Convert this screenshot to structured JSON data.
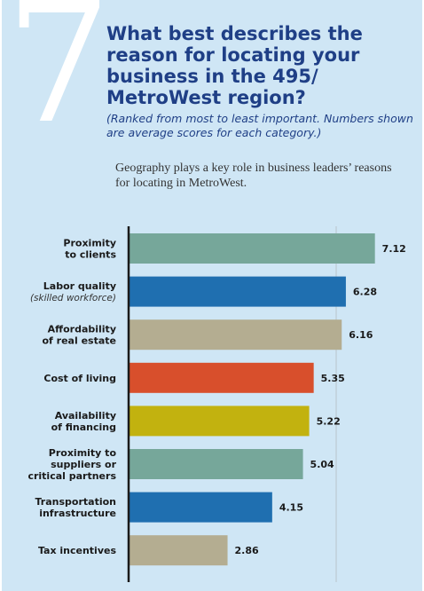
{
  "header": {
    "number": "7",
    "title": "What best describes the reason for locating your business in the 495/ MetroWest region?",
    "subtitle": "(Ranked from most to least important. Numbers shown are average scores for each category.)",
    "intro": "Geography plays a key role in business leaders’ reasons for locating in MetroWest."
  },
  "chart_data": {
    "type": "bar",
    "orientation": "horizontal",
    "xlim": [
      0,
      8
    ],
    "categories": [
      [
        "Proximity",
        "to clients"
      ],
      [
        "Labor quality"
      ],
      [
        "Affordability",
        "of real estate"
      ],
      [
        "Cost of living"
      ],
      [
        "Availability",
        "of financing"
      ],
      [
        "Proximity to",
        "suppliers or",
        "critical partners"
      ],
      [
        "Transportation",
        "infrastructure"
      ],
      [
        "Tax incentives"
      ]
    ],
    "category_notes": [
      "",
      "(skilled workforce)",
      "",
      "",
      "",
      "",
      "",
      ""
    ],
    "values": [
      7.12,
      6.28,
      6.16,
      5.35,
      5.22,
      5.04,
      4.15,
      2.86
    ],
    "value_labels": [
      "7.12",
      "6.28",
      "6.16",
      "5.35",
      "5.22",
      "5.04",
      "4.15",
      "2.86"
    ],
    "colors": [
      "#76a79a",
      "#1f6fb0",
      "#b4ad91",
      "#d84f2c",
      "#c2b20f",
      "#76a79a",
      "#1f6fb0",
      "#b4ad91"
    ],
    "reference_line": 6
  }
}
